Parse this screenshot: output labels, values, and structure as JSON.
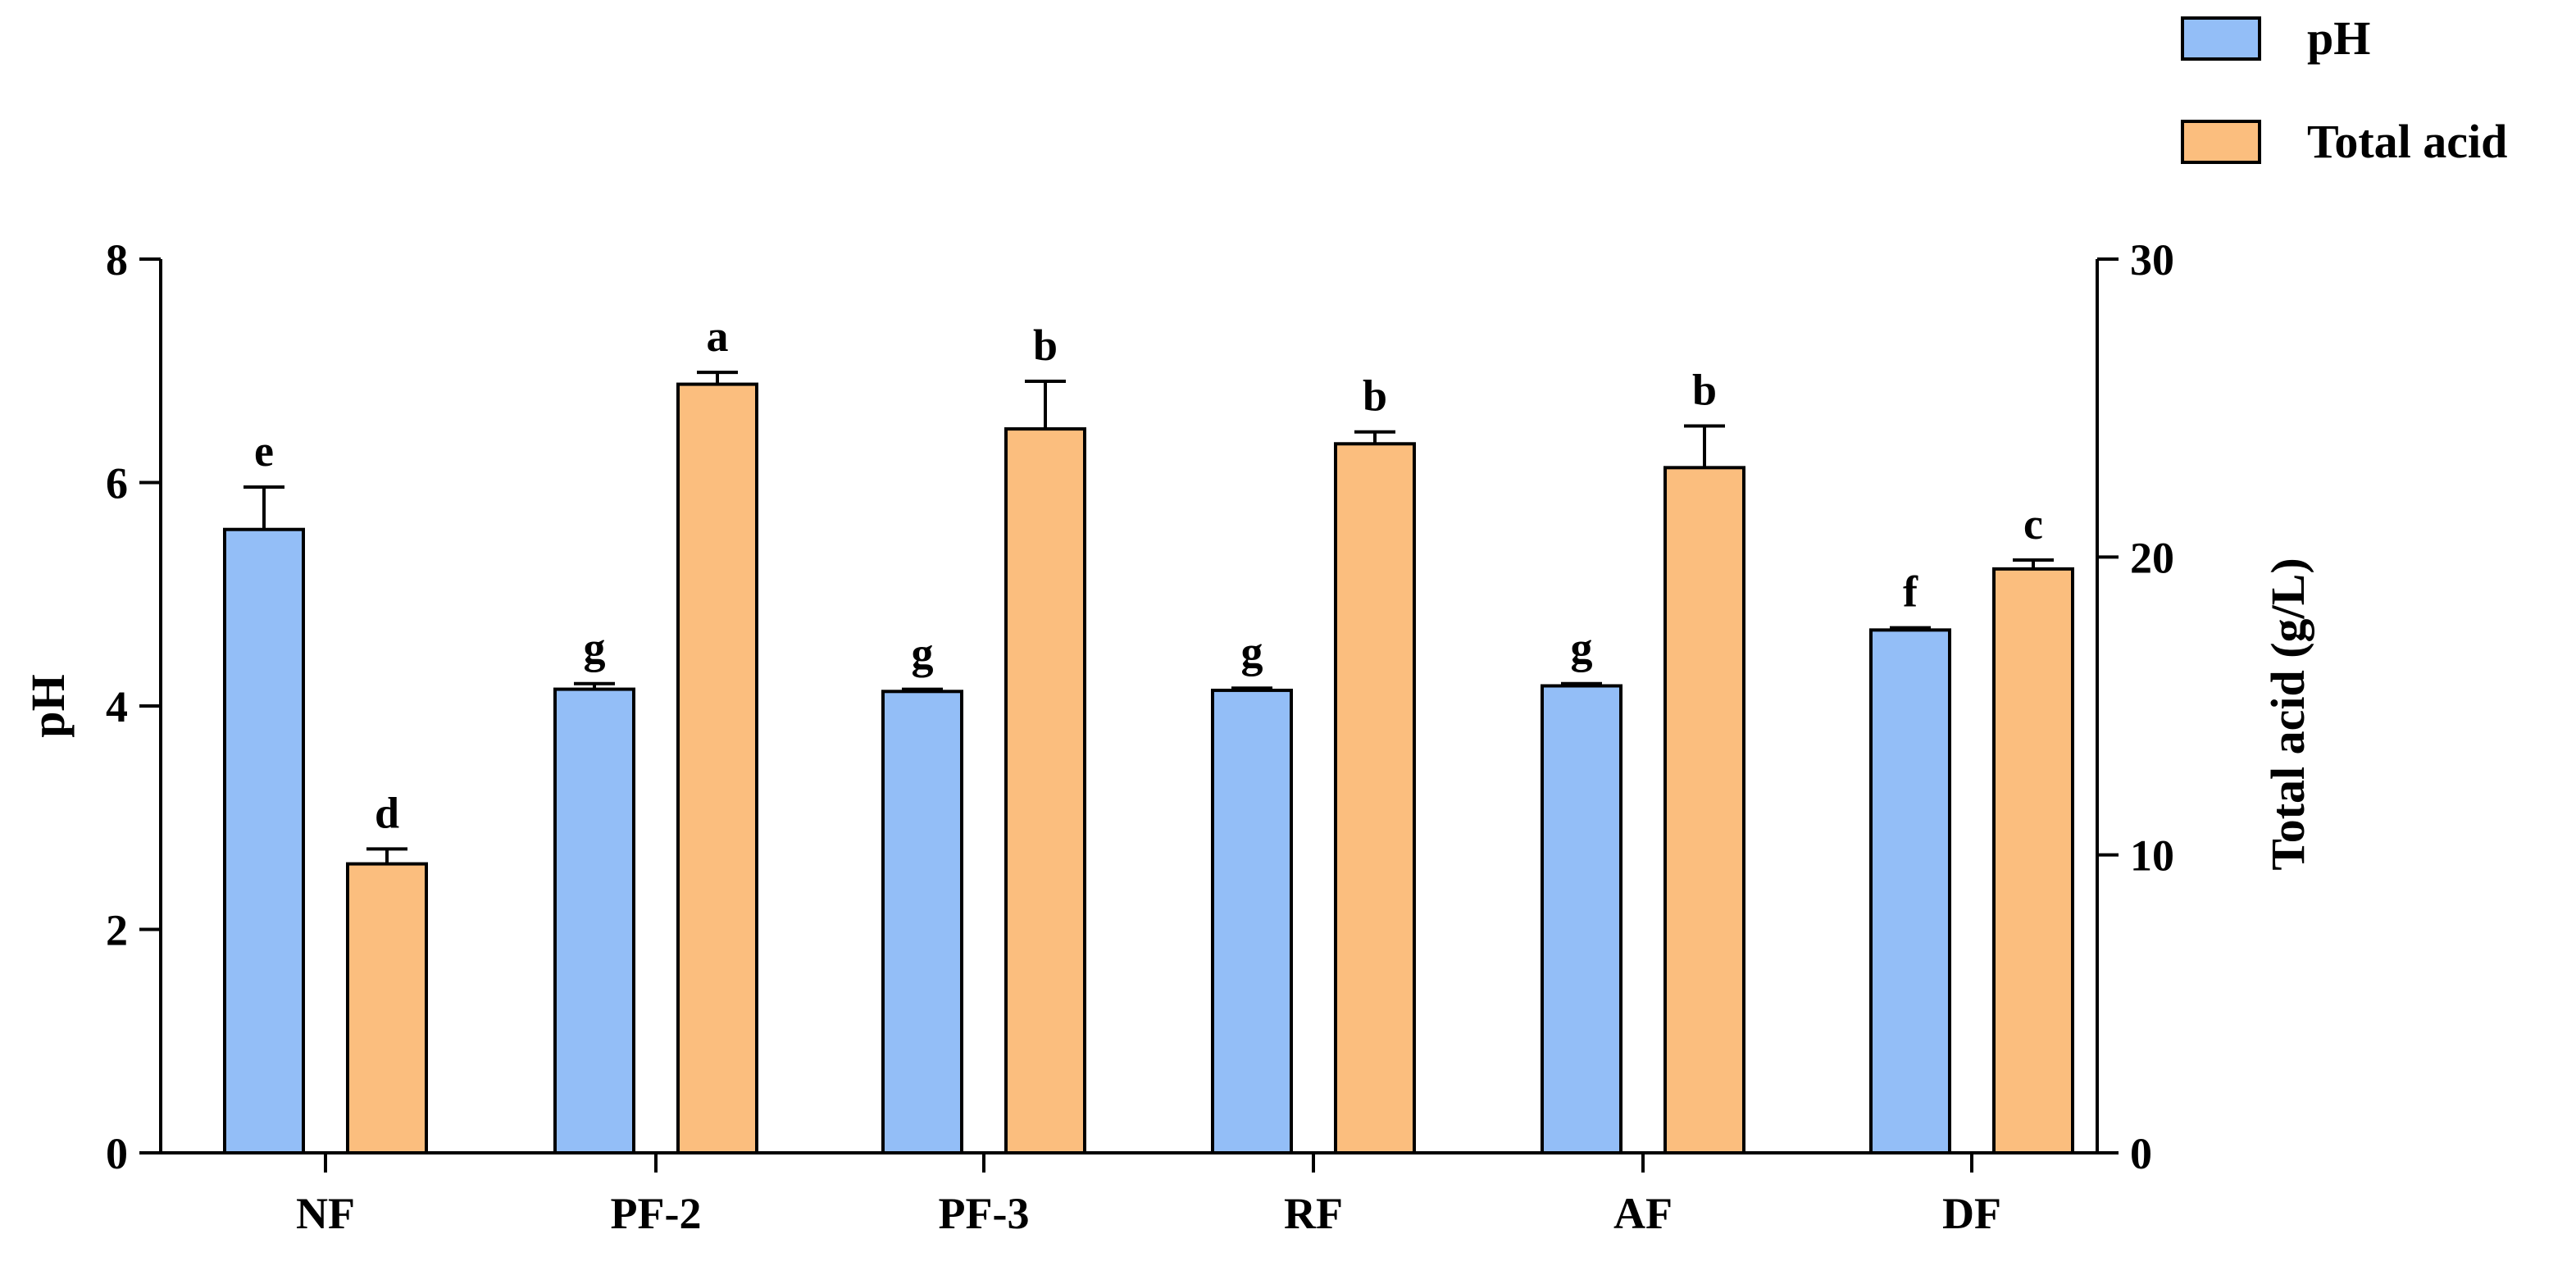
{
  "chart_data": {
    "type": "bar",
    "categories": [
      "NF",
      "PF-2",
      "PF-3",
      "RF",
      "AF",
      "DF"
    ],
    "series": [
      {
        "name": "pH",
        "axis": "left",
        "color": "#93BEF7",
        "values": [
          5.58,
          4.15,
          4.13,
          4.14,
          4.18,
          4.68
        ],
        "errors": [
          0.38,
          0.05,
          0.02,
          0.02,
          0.02,
          0.02
        ],
        "letters": [
          "e",
          "g",
          "g",
          "g",
          "g",
          "f"
        ]
      },
      {
        "name": "Total acid",
        "axis": "right",
        "color": "#FBBE7E",
        "values": [
          9.7,
          25.8,
          24.3,
          23.8,
          23.0,
          19.6
        ],
        "errors": [
          0.5,
          0.4,
          1.6,
          0.4,
          1.4,
          0.3
        ],
        "letters": [
          "d",
          "a",
          "b",
          "b",
          "b",
          "c"
        ]
      }
    ],
    "left_axis": {
      "title": "pH",
      "range": [
        0,
        8
      ],
      "ticks": [
        0,
        2,
        4,
        6,
        8
      ]
    },
    "right_axis": {
      "title": "Total acid (g/L)",
      "range": [
        0,
        30
      ],
      "ticks": [
        0,
        10,
        20,
        30
      ]
    },
    "legend": {
      "position": "top-right",
      "entries": [
        "pH",
        "Total acid"
      ]
    }
  }
}
